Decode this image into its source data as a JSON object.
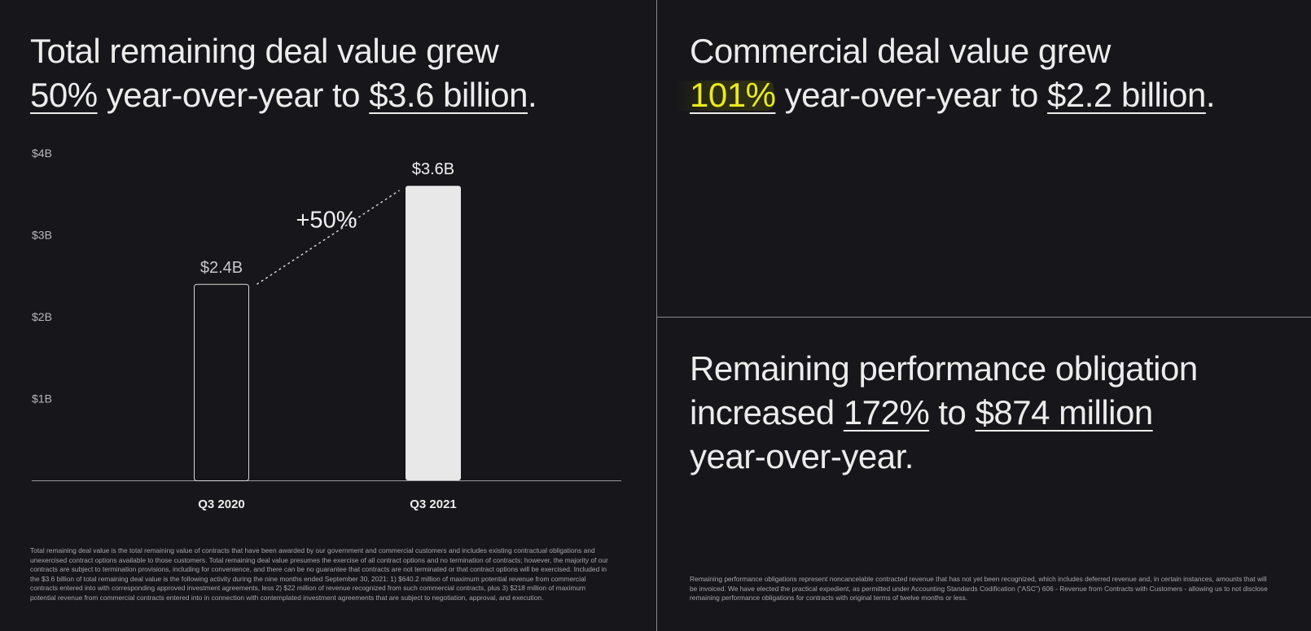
{
  "left": {
    "headline": {
      "line1": "Total remaining deal value grew",
      "pct": "50%",
      "mid": " year-over-year to ",
      "amount": "$3.6 billion",
      "end": "."
    },
    "footnote": "Total remaining deal value is the total remaining value of contracts that have been awarded by our government and commercial customers and includes existing contractual obligations and unexercised contract options available to those customers. Total remaining deal value presumes the exercise of all contract options and no termination of contracts; however, the majority of our contracts are subject to termination provisions, including for convenience, and there can be no guarantee that contracts are not terminated or that contract options will be exercised. Included in the $3.6 billion of total remaining deal value is the following activity during the nine months ended September 30, 2021: 1) $640.2 million of maximum potential revenue from commercial contracts entered into with corresponding approved investment agreements, less 2) $22 million of revenue recognized from such commercial contracts, plus 3) $218 million of maximum potential revenue from commercial contracts entered into in connection with contemplated investment agreements that are subject to negotiation, approval, and execution."
  },
  "right_top": {
    "headline": {
      "line1": "Commercial deal value grew",
      "pct": "101%",
      "mid": " year-over-year to ",
      "amount": "$2.2 billion",
      "end": "."
    }
  },
  "right_bottom": {
    "headline": {
      "line1": "Remaining performance obligation",
      "pre": "increased ",
      "pct": "172%",
      "mid": " to ",
      "amount": "$874 million",
      "line3": "year-over-year."
    },
    "footnote": "Remaining  performance obligations represent noncancelable contracted revenue that  has not yet been recognized, which includes deferred revenue and, in  certain instances, amounts that will be invoiced. We have elected the  practical expedient, as permitted under Accounting Standards Codification  (“ASC”) 606 - Revenue from Contracts with Customers - allowing us to not  disclose remaining performance obligations for contracts with original  terms of twelve months or less."
  },
  "chart_data": {
    "type": "bar",
    "categories": [
      "Q3 2020",
      "Q3 2021"
    ],
    "values": [
      2.4,
      3.6
    ],
    "data_labels": [
      "$2.4B",
      "$3.6B"
    ],
    "ylim": [
      0,
      4
    ],
    "yticks": [
      {
        "value": 1,
        "label": "$1B"
      },
      {
        "value": 2,
        "label": "$2B"
      },
      {
        "value": 3,
        "label": "$3B"
      },
      {
        "value": 4,
        "label": "$4B"
      }
    ],
    "annotation": "+50%",
    "grid": false,
    "colors": {
      "bar_2020": "#17171b",
      "bar_2020_stroke": "#d8d8d8",
      "bar_2021": "#e8e8e8",
      "axis": "#9a9a9e"
    }
  }
}
